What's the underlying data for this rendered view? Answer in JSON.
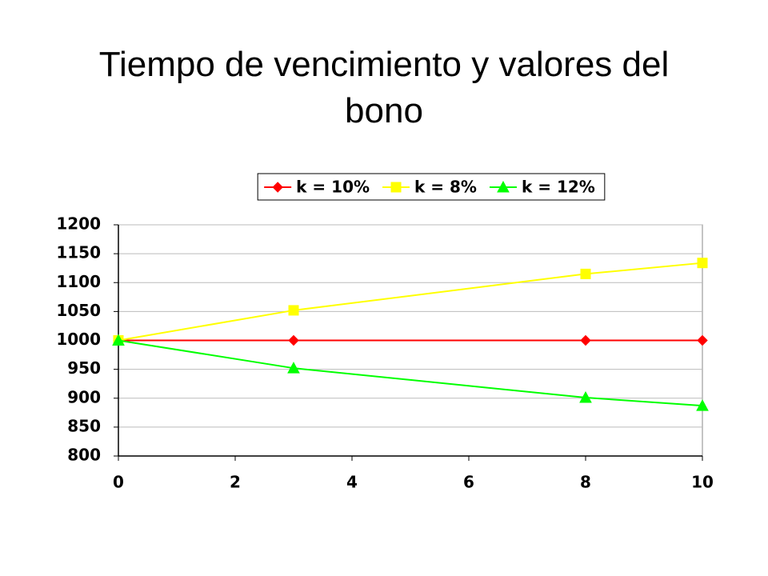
{
  "chart_data": {
    "type": "line",
    "title": "Tiempo de vencimiento y valores del bono",
    "x": [
      0,
      3,
      8,
      10
    ],
    "series": [
      {
        "name": "k = 10%",
        "color": "#ff0000",
        "marker": "diamond",
        "values": [
          1000,
          1000,
          1000,
          1000
        ]
      },
      {
        "name": "k = 8%",
        "color": "#ffff00",
        "marker": "square",
        "values": [
          1000,
          1052,
          1115,
          1134
        ]
      },
      {
        "name": "k = 12%",
        "color": "#00ff00",
        "marker": "triangle",
        "values": [
          1000,
          952,
          901,
          887
        ]
      }
    ],
    "xlim": [
      0,
      10
    ],
    "xticks": [
      0,
      2,
      4,
      6,
      8,
      10
    ],
    "ylim": [
      800,
      1200
    ],
    "yticks": [
      800,
      850,
      900,
      950,
      1000,
      1050,
      1100,
      1150,
      1200
    ],
    "grid": true,
    "legend": "top"
  }
}
